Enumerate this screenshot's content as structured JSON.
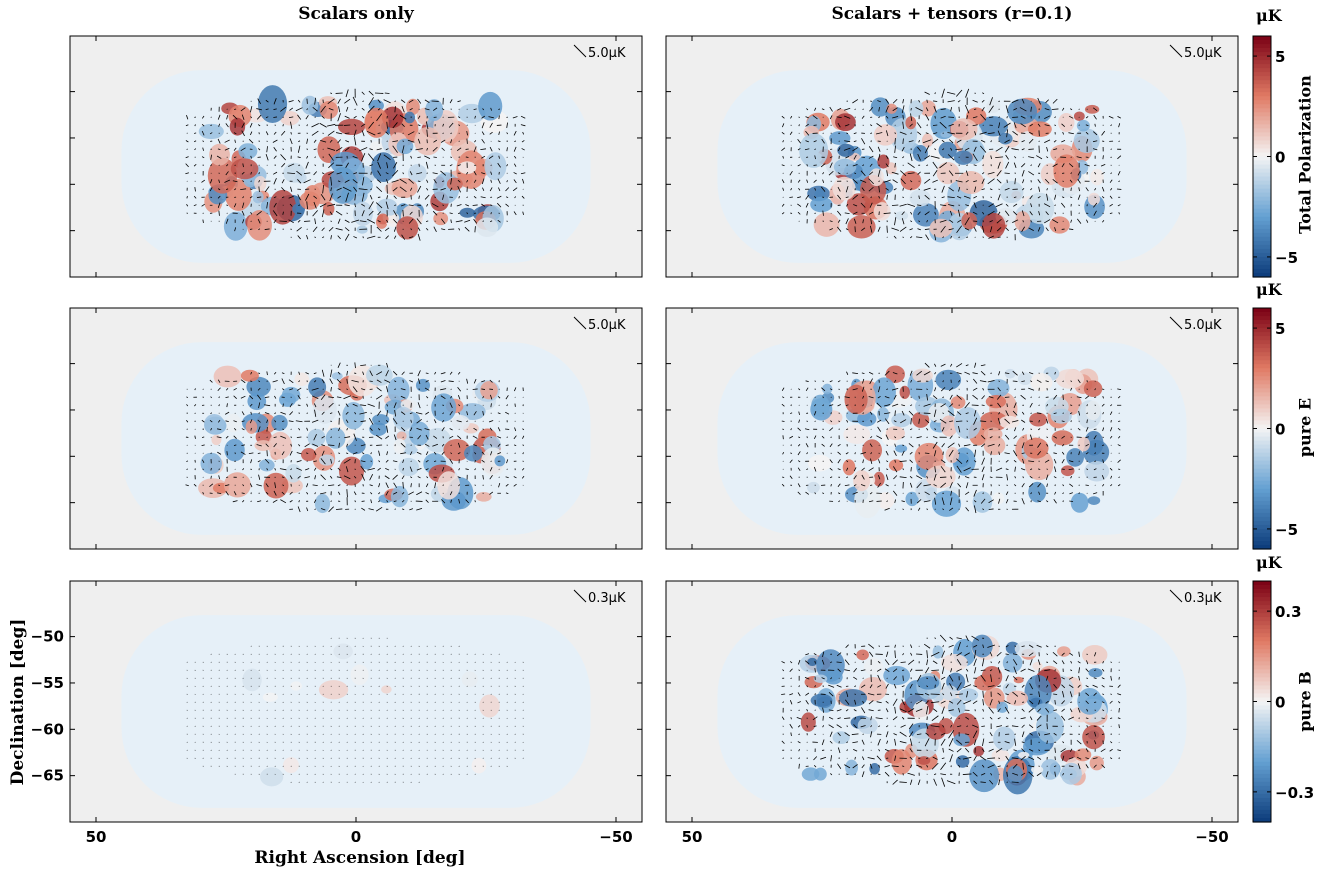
{
  "figure": {
    "col_titles": [
      "Scalars only",
      "Scalars + tensors (r=0.1)"
    ],
    "xlabel": "Right Ascension [deg]",
    "ylabel": "Declination [deg]"
  },
  "colors": {
    "neg": "#0b3b7a",
    "mid": "#f4f4f4",
    "pos": "#7a0014",
    "background": "#efefef",
    "footprint": "#e6f0f8"
  },
  "chart_data": [
    {
      "type": "heatmap",
      "row": "Total Polarization",
      "colorbar": {
        "label": "Total Polarization",
        "unit": "μK",
        "range": [
          -6,
          6
        ],
        "ticks": [
          5,
          0,
          -5
        ],
        "tick_labels": [
          "5",
          "0",
          "−5"
        ]
      },
      "panels": [
        {
          "title": "Scalars only",
          "vector_scale": "5.0μK",
          "amplitude": 1.0
        },
        {
          "title": "Scalars + tensors (r=0.1)",
          "vector_scale": "5.0μK",
          "amplitude": 1.0
        }
      ]
    },
    {
      "type": "heatmap",
      "row": "pure E",
      "colorbar": {
        "label": "pure E",
        "unit": "μK",
        "range": [
          -6,
          6
        ],
        "ticks": [
          5,
          0,
          -5
        ],
        "tick_labels": [
          "5",
          "0",
          "−5"
        ]
      },
      "panels": [
        {
          "title": "Scalars only",
          "vector_scale": "5.0μK",
          "amplitude": 0.85
        },
        {
          "title": "Scalars + tensors (r=0.1)",
          "vector_scale": "5.0μK",
          "amplitude": 0.85
        }
      ]
    },
    {
      "type": "heatmap",
      "row": "pure B",
      "colorbar": {
        "label": "pure B",
        "unit": "μK",
        "range": [
          -0.4,
          0.4
        ],
        "ticks": [
          0.3,
          0,
          -0.3
        ],
        "tick_labels": [
          "0.3",
          "0",
          "−0.3"
        ]
      },
      "panels": [
        {
          "title": "Scalars only",
          "vector_scale": "0.3μK",
          "amplitude": 0.05
        },
        {
          "title": "Scalars + tensors (r=0.1)",
          "vector_scale": "0.3μK",
          "amplitude": 1.0
        }
      ]
    }
  ],
  "axes": {
    "x_ticks": [
      50,
      0,
      -50
    ],
    "x_tick_labels": [
      "50",
      "0",
      "−50"
    ],
    "x_range": [
      55,
      -55
    ],
    "y_ticks": [
      -50,
      -55,
      -60,
      -65
    ],
    "y_tick_labels": [
      "−50",
      "−55",
      "−60",
      "−65"
    ],
    "y_range": [
      -70,
      -44
    ]
  }
}
